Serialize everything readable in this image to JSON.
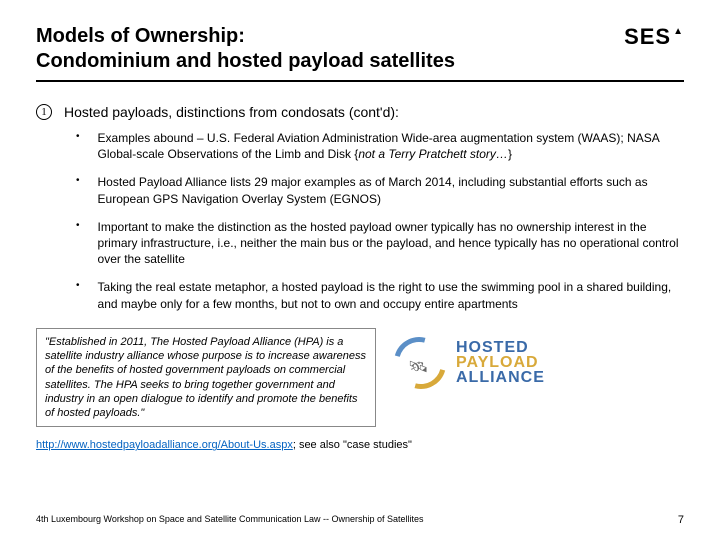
{
  "header": {
    "title_line1": "Models of Ownership:",
    "title_line2": "Condominium and hosted payload satellites",
    "logo_text": "SES",
    "logo_triangle": "▲"
  },
  "main": {
    "number": "1",
    "heading": "Hosted payloads, distinctions from condosats (cont'd):",
    "items": [
      "Examples abound – U.S. Federal Aviation Administration Wide-area augmentation system (WAAS); NASA Global-scale Observations of the Limb and Disk {not a Terry Pratchett story…}",
      "Hosted Payload Alliance lists 29 major examples as of March 2014, including substantial efforts such as European GPS Navigation Overlay System (EGNOS)",
      "Important to make the distinction as the hosted payload owner typically has no ownership interest in the primary infrastructure, i.e., neither the main bus or the payload, and hence typically has no operational control over the satellite",
      "Taking the real estate metaphor, a hosted payload is the right to use the swimming pool in a shared building, and maybe only for a few months, but not to own and occupy entire apartments"
    ]
  },
  "quote": {
    "text": "\"Established in 2011, The Hosted Payload Alliance (HPA) is a satellite industry alliance whose purpose is to increase awareness of the benefits of hosted government payloads on commercial satellites. The HPA seeks to bring together government and industry in an open dialogue to identify and promote the benefits of hosted payloads.\""
  },
  "hpa_logo": {
    "line1": "HOSTED",
    "line2": "PAYLOAD",
    "line3": "ALLIANCE",
    "color_blue": "#3a6aa8",
    "color_gold": "#d8a93a"
  },
  "link": {
    "url_text": "http://www.hostedpayloadalliance.org/About-Us.aspx",
    "suffix": "; see also \"case studies\""
  },
  "footer": {
    "text": "4th Luxembourg Workshop on Space and Satellite Communication Law -- Ownership of Satellites",
    "page": "7"
  }
}
